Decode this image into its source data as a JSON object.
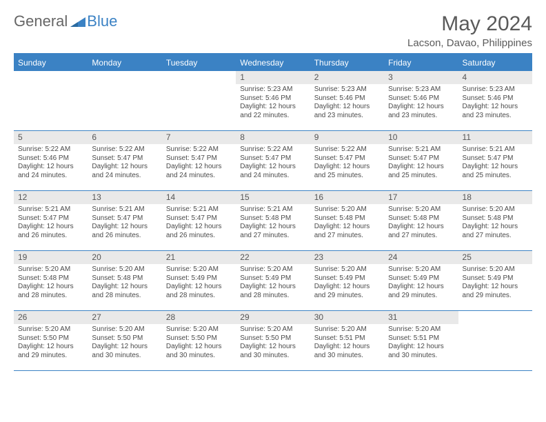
{
  "logo": {
    "text_general": "General",
    "text_blue": "Blue"
  },
  "header": {
    "month_title": "May 2024",
    "location": "Lacson, Davao, Philippines"
  },
  "colors": {
    "accent": "#3b82c4",
    "header_text": "#ffffff",
    "daynum_bg": "#e9e9e9",
    "text": "#4a4a4a",
    "title_text": "#5a5a5a"
  },
  "day_headers": [
    "Sunday",
    "Monday",
    "Tuesday",
    "Wednesday",
    "Thursday",
    "Friday",
    "Saturday"
  ],
  "weeks": [
    [
      {
        "num": "",
        "sunrise": "",
        "sunset": "",
        "daylight": ""
      },
      {
        "num": "",
        "sunrise": "",
        "sunset": "",
        "daylight": ""
      },
      {
        "num": "",
        "sunrise": "",
        "sunset": "",
        "daylight": ""
      },
      {
        "num": "1",
        "sunrise": "Sunrise: 5:23 AM",
        "sunset": "Sunset: 5:46 PM",
        "daylight": "Daylight: 12 hours and 22 minutes."
      },
      {
        "num": "2",
        "sunrise": "Sunrise: 5:23 AM",
        "sunset": "Sunset: 5:46 PM",
        "daylight": "Daylight: 12 hours and 23 minutes."
      },
      {
        "num": "3",
        "sunrise": "Sunrise: 5:23 AM",
        "sunset": "Sunset: 5:46 PM",
        "daylight": "Daylight: 12 hours and 23 minutes."
      },
      {
        "num": "4",
        "sunrise": "Sunrise: 5:23 AM",
        "sunset": "Sunset: 5:46 PM",
        "daylight": "Daylight: 12 hours and 23 minutes."
      }
    ],
    [
      {
        "num": "5",
        "sunrise": "Sunrise: 5:22 AM",
        "sunset": "Sunset: 5:46 PM",
        "daylight": "Daylight: 12 hours and 24 minutes."
      },
      {
        "num": "6",
        "sunrise": "Sunrise: 5:22 AM",
        "sunset": "Sunset: 5:47 PM",
        "daylight": "Daylight: 12 hours and 24 minutes."
      },
      {
        "num": "7",
        "sunrise": "Sunrise: 5:22 AM",
        "sunset": "Sunset: 5:47 PM",
        "daylight": "Daylight: 12 hours and 24 minutes."
      },
      {
        "num": "8",
        "sunrise": "Sunrise: 5:22 AM",
        "sunset": "Sunset: 5:47 PM",
        "daylight": "Daylight: 12 hours and 24 minutes."
      },
      {
        "num": "9",
        "sunrise": "Sunrise: 5:22 AM",
        "sunset": "Sunset: 5:47 PM",
        "daylight": "Daylight: 12 hours and 25 minutes."
      },
      {
        "num": "10",
        "sunrise": "Sunrise: 5:21 AM",
        "sunset": "Sunset: 5:47 PM",
        "daylight": "Daylight: 12 hours and 25 minutes."
      },
      {
        "num": "11",
        "sunrise": "Sunrise: 5:21 AM",
        "sunset": "Sunset: 5:47 PM",
        "daylight": "Daylight: 12 hours and 25 minutes."
      }
    ],
    [
      {
        "num": "12",
        "sunrise": "Sunrise: 5:21 AM",
        "sunset": "Sunset: 5:47 PM",
        "daylight": "Daylight: 12 hours and 26 minutes."
      },
      {
        "num": "13",
        "sunrise": "Sunrise: 5:21 AM",
        "sunset": "Sunset: 5:47 PM",
        "daylight": "Daylight: 12 hours and 26 minutes."
      },
      {
        "num": "14",
        "sunrise": "Sunrise: 5:21 AM",
        "sunset": "Sunset: 5:47 PM",
        "daylight": "Daylight: 12 hours and 26 minutes."
      },
      {
        "num": "15",
        "sunrise": "Sunrise: 5:21 AM",
        "sunset": "Sunset: 5:48 PM",
        "daylight": "Daylight: 12 hours and 27 minutes."
      },
      {
        "num": "16",
        "sunrise": "Sunrise: 5:20 AM",
        "sunset": "Sunset: 5:48 PM",
        "daylight": "Daylight: 12 hours and 27 minutes."
      },
      {
        "num": "17",
        "sunrise": "Sunrise: 5:20 AM",
        "sunset": "Sunset: 5:48 PM",
        "daylight": "Daylight: 12 hours and 27 minutes."
      },
      {
        "num": "18",
        "sunrise": "Sunrise: 5:20 AM",
        "sunset": "Sunset: 5:48 PM",
        "daylight": "Daylight: 12 hours and 27 minutes."
      }
    ],
    [
      {
        "num": "19",
        "sunrise": "Sunrise: 5:20 AM",
        "sunset": "Sunset: 5:48 PM",
        "daylight": "Daylight: 12 hours and 28 minutes."
      },
      {
        "num": "20",
        "sunrise": "Sunrise: 5:20 AM",
        "sunset": "Sunset: 5:48 PM",
        "daylight": "Daylight: 12 hours and 28 minutes."
      },
      {
        "num": "21",
        "sunrise": "Sunrise: 5:20 AM",
        "sunset": "Sunset: 5:49 PM",
        "daylight": "Daylight: 12 hours and 28 minutes."
      },
      {
        "num": "22",
        "sunrise": "Sunrise: 5:20 AM",
        "sunset": "Sunset: 5:49 PM",
        "daylight": "Daylight: 12 hours and 28 minutes."
      },
      {
        "num": "23",
        "sunrise": "Sunrise: 5:20 AM",
        "sunset": "Sunset: 5:49 PM",
        "daylight": "Daylight: 12 hours and 29 minutes."
      },
      {
        "num": "24",
        "sunrise": "Sunrise: 5:20 AM",
        "sunset": "Sunset: 5:49 PM",
        "daylight": "Daylight: 12 hours and 29 minutes."
      },
      {
        "num": "25",
        "sunrise": "Sunrise: 5:20 AM",
        "sunset": "Sunset: 5:49 PM",
        "daylight": "Daylight: 12 hours and 29 minutes."
      }
    ],
    [
      {
        "num": "26",
        "sunrise": "Sunrise: 5:20 AM",
        "sunset": "Sunset: 5:50 PM",
        "daylight": "Daylight: 12 hours and 29 minutes."
      },
      {
        "num": "27",
        "sunrise": "Sunrise: 5:20 AM",
        "sunset": "Sunset: 5:50 PM",
        "daylight": "Daylight: 12 hours and 30 minutes."
      },
      {
        "num": "28",
        "sunrise": "Sunrise: 5:20 AM",
        "sunset": "Sunset: 5:50 PM",
        "daylight": "Daylight: 12 hours and 30 minutes."
      },
      {
        "num": "29",
        "sunrise": "Sunrise: 5:20 AM",
        "sunset": "Sunset: 5:50 PM",
        "daylight": "Daylight: 12 hours and 30 minutes."
      },
      {
        "num": "30",
        "sunrise": "Sunrise: 5:20 AM",
        "sunset": "Sunset: 5:51 PM",
        "daylight": "Daylight: 12 hours and 30 minutes."
      },
      {
        "num": "31",
        "sunrise": "Sunrise: 5:20 AM",
        "sunset": "Sunset: 5:51 PM",
        "daylight": "Daylight: 12 hours and 30 minutes."
      },
      {
        "num": "",
        "sunrise": "",
        "sunset": "",
        "daylight": ""
      }
    ]
  ]
}
